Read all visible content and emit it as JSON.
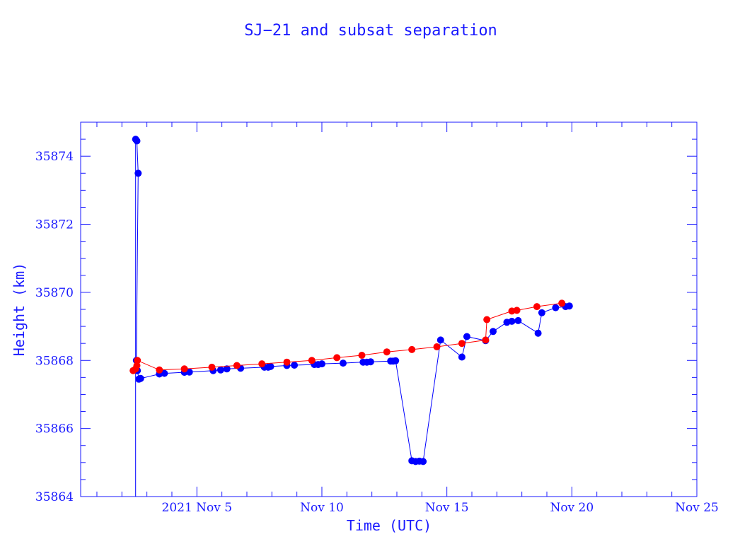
{
  "chart_data": {
    "type": "scatter",
    "title": "SJ−21 and subsat separation",
    "xlabel": "Time (UTC)",
    "ylabel": "Height (km)",
    "x_unit": "days of November 2021",
    "xlim": [
      0.35,
      25
    ],
    "ylim": [
      35864,
      35875
    ],
    "x_ticks": [
      {
        "value": 5,
        "label": "2021 Nov  5"
      },
      {
        "value": 10,
        "label": "Nov 10"
      },
      {
        "value": 15,
        "label": "Nov 15"
      },
      {
        "value": 20,
        "label": "Nov 20"
      },
      {
        "value": 25,
        "label": "Nov 25"
      }
    ],
    "y_ticks": [
      35864,
      35866,
      35868,
      35870,
      35872,
      35874
    ],
    "grid": false,
    "colors": {
      "axes": "#1a1aff",
      "series_blue": "#0000ff",
      "series_red": "#ff0000"
    },
    "series": [
      {
        "color": "#0000ff",
        "x": [
          2.55,
          2.55,
          2.6,
          2.65,
          2.58,
          2.62,
          2.68,
          2.75,
          3.5,
          3.7,
          4.5,
          4.7,
          5.65,
          5.95,
          6.2,
          6.75,
          7.7,
          7.85,
          7.95,
          8.6,
          8.9,
          9.7,
          9.85,
          10.0,
          10.85,
          11.65,
          11.8,
          11.95,
          12.75,
          12.85,
          12.95,
          13.6,
          13.75,
          13.9,
          14.05,
          14.75,
          15.6,
          15.8,
          16.55,
          16.85,
          17.4,
          17.6,
          17.85,
          18.65,
          18.8,
          19.35,
          19.75,
          19.9
        ],
        "y": [
          35864.0,
          35874.5,
          35874.45,
          35873.5,
          35868.0,
          35867.7,
          35867.45,
          35867.47,
          35867.6,
          35867.62,
          35867.65,
          35867.66,
          35867.7,
          35867.72,
          35867.75,
          35867.77,
          35867.8,
          35867.8,
          35867.82,
          35867.85,
          35867.86,
          35867.88,
          35867.88,
          35867.9,
          35867.92,
          35867.95,
          35867.95,
          35867.96,
          35867.98,
          35867.98,
          35867.99,
          35865.05,
          35865.03,
          35865.04,
          35865.03,
          35868.6,
          35868.1,
          35868.7,
          35868.58,
          35868.85,
          35869.12,
          35869.15,
          35869.17,
          35868.8,
          35869.4,
          35869.55,
          35869.58,
          35869.6
        ]
      },
      {
        "color": "#ff0000",
        "x": [
          2.45,
          2.55,
          2.6,
          2.62,
          3.5,
          4.5,
          5.6,
          6.6,
          7.6,
          8.6,
          9.6,
          10.6,
          11.6,
          12.6,
          13.6,
          14.6,
          15.6,
          16.55,
          16.6,
          17.6,
          17.8,
          18.6,
          19.6
        ],
        "y": [
          35867.7,
          35867.75,
          35867.85,
          35868.0,
          35867.72,
          35867.75,
          35867.8,
          35867.85,
          35867.9,
          35867.95,
          35868.0,
          35868.08,
          35868.15,
          35868.25,
          35868.32,
          35868.4,
          35868.5,
          35868.6,
          35869.2,
          35869.45,
          35869.47,
          35869.58,
          35869.68
        ]
      }
    ]
  }
}
